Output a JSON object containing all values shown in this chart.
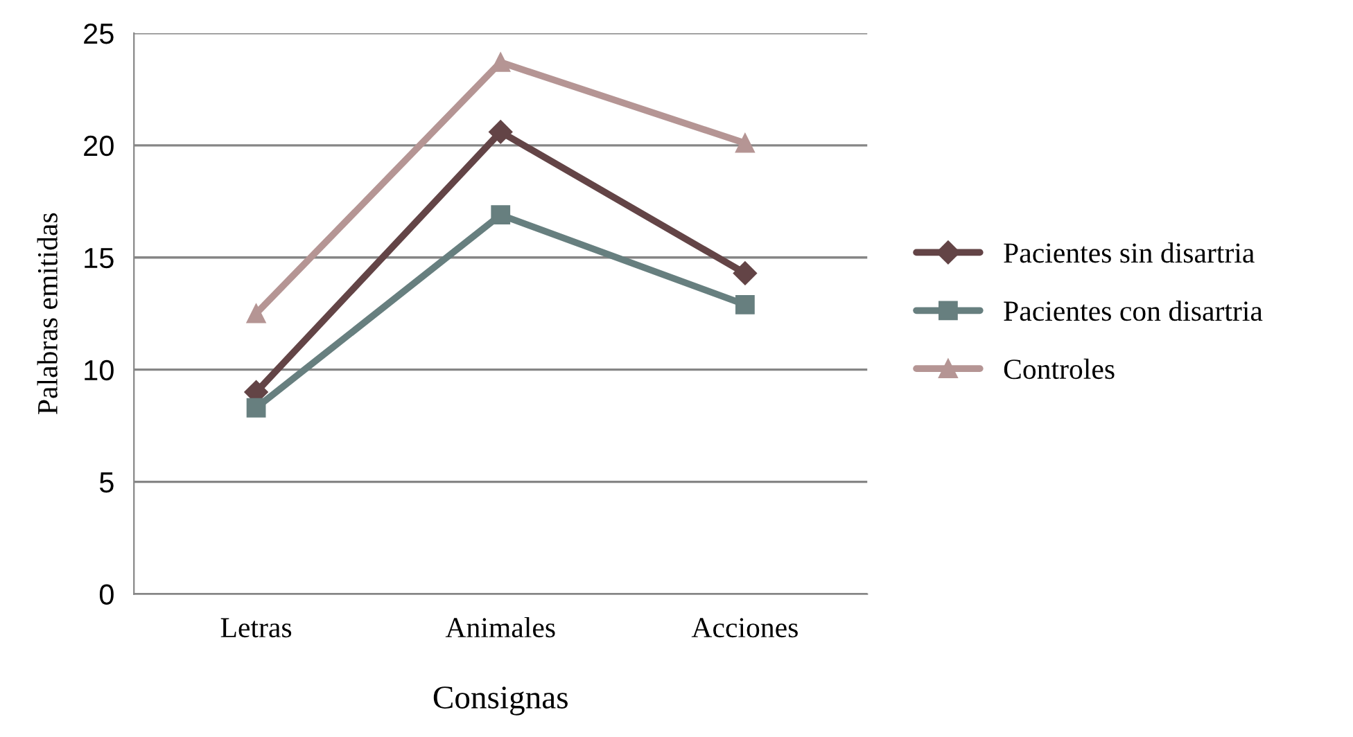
{
  "chart_data": {
    "type": "line",
    "xlabel": "Consignas",
    "ylabel": "Palabras emitidas",
    "categories": [
      "Letras",
      "Animales",
      "Acciones"
    ],
    "series": [
      {
        "name": "Pacientes sin disartria",
        "color": "#634446",
        "marker": "diamond",
        "values": [
          9.0,
          20.6,
          14.3
        ]
      },
      {
        "name": "Pacientes con disartria",
        "color": "#677f7f",
        "marker": "square",
        "values": [
          8.3,
          16.9,
          12.9
        ]
      },
      {
        "name": "Controles",
        "color": "#b59594",
        "marker": "triangle",
        "values": [
          12.5,
          23.7,
          20.1
        ]
      }
    ],
    "ylim": [
      0,
      25
    ],
    "yticks": [
      0,
      5,
      10,
      15,
      20,
      25
    ],
    "grid": "y",
    "legend": "right"
  }
}
